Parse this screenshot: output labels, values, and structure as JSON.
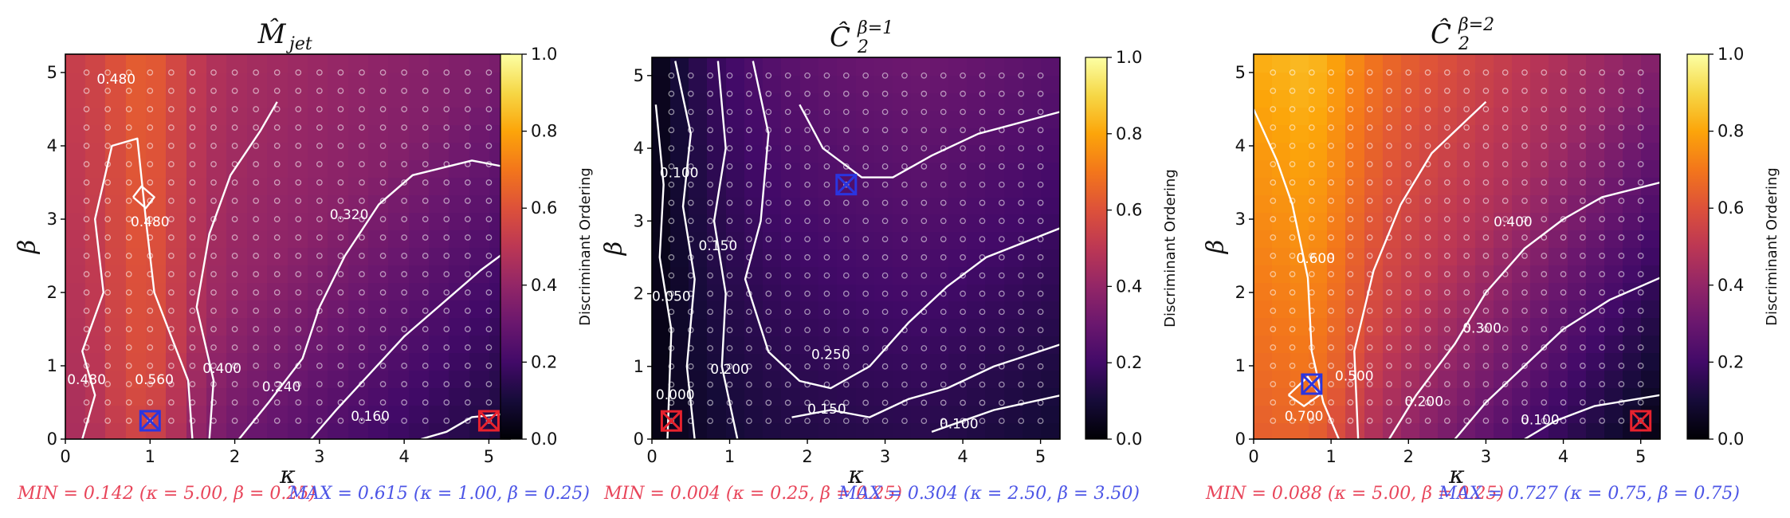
{
  "colors": {
    "min_marker": "#e8222e",
    "max_marker": "#2a35e0",
    "contour": "#ffffff",
    "min_text": "#e8455a",
    "max_text": "#4c55e6"
  },
  "colorbar": {
    "label": "Discriminant Ordering",
    "ticks": [
      "0.0",
      "0.2",
      "0.4",
      "0.6",
      "0.8",
      "1.0"
    ],
    "colormap": "inferno"
  },
  "chart_data": [
    {
      "type": "heatmap",
      "title": "M̂",
      "title_sub": "jet",
      "xlabel": "κ",
      "ylabel": "β",
      "xlim": [
        0,
        5.25
      ],
      "ylim": [
        0,
        5.25
      ],
      "xticks": [
        "0",
        "1",
        "2",
        "3",
        "4",
        "5"
      ],
      "yticks": [
        "0",
        "1",
        "2",
        "3",
        "4",
        "5"
      ],
      "value_range": [
        0,
        1
      ],
      "contour_labels": [
        "0.480",
        "0.480",
        "0.560",
        "0.400",
        "0.320",
        "0.240",
        "0.160",
        "0.480"
      ],
      "min": {
        "value": 0.142,
        "kappa": 5.0,
        "beta": 0.25,
        "text": "MIN = 0.142 (κ = 5.00, β = 0.25)"
      },
      "max": {
        "value": 0.615,
        "kappa": 1.0,
        "beta": 0.25,
        "text": "MAX = 0.615 (κ = 1.00, β = 0.25)"
      }
    },
    {
      "type": "heatmap",
      "title": "Ĉ",
      "title_sub": "2",
      "title_sup": "β=1",
      "xlabel": "κ",
      "ylabel": "β",
      "xlim": [
        0,
        5.25
      ],
      "ylim": [
        0,
        5.25
      ],
      "xticks": [
        "0",
        "1",
        "2",
        "3",
        "4",
        "5"
      ],
      "yticks": [
        "0",
        "1",
        "2",
        "3",
        "4",
        "5"
      ],
      "value_range": [
        0,
        1
      ],
      "contour_labels": [
        "0.100",
        "0.050",
        "0.150",
        "0.200",
        "0.250",
        "0.000",
        "0.150",
        "0.100"
      ],
      "min": {
        "value": 0.004,
        "kappa": 0.25,
        "beta": 0.25,
        "text": "MIN = 0.004 (κ = 0.25, β = 0.25)"
      },
      "max": {
        "value": 0.304,
        "kappa": 2.5,
        "beta": 3.5,
        "text": "MAX = 0.304 (κ = 2.50, β = 3.50)"
      }
    },
    {
      "type": "heatmap",
      "title": "Ĉ",
      "title_sub": "2",
      "title_sup": "β=2",
      "xlabel": "κ",
      "ylabel": "β",
      "xlim": [
        0,
        5.25
      ],
      "ylim": [
        0,
        5.25
      ],
      "xticks": [
        "0",
        "1",
        "2",
        "3",
        "4",
        "5"
      ],
      "yticks": [
        "0",
        "1",
        "2",
        "3",
        "4",
        "5"
      ],
      "value_range": [
        0,
        1
      ],
      "contour_labels": [
        "0.600",
        "0.400",
        "0.300",
        "0.500",
        "0.200",
        "0.100",
        "0.700"
      ],
      "min": {
        "value": 0.088,
        "kappa": 5.0,
        "beta": 0.25,
        "text": "MIN = 0.088 (κ = 5.00, β = 0.25)"
      },
      "max": {
        "value": 0.727,
        "kappa": 0.75,
        "beta": 0.75,
        "text": "MAX = 0.727 (κ = 0.75, β = 0.75)"
      }
    }
  ]
}
